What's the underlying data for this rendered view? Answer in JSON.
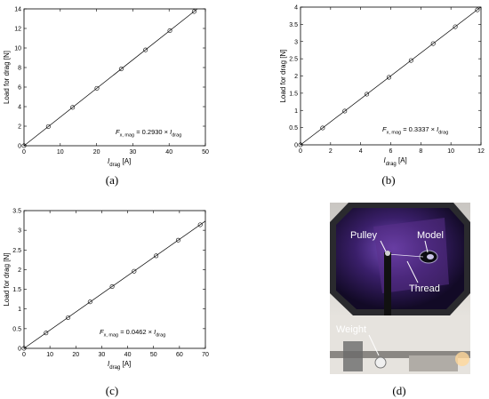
{
  "chart_data": [
    {
      "type": "scatter",
      "caption": "(a)",
      "ylabel": "Load for drag [N]",
      "xlabel_main": "I",
      "xlabel_sub": "drag",
      "xlabel_unit": " [A]",
      "xlim": [
        0,
        50
      ],
      "ylim": [
        0,
        14
      ],
      "xticks": [
        0,
        10,
        20,
        30,
        40,
        50
      ],
      "yticks": [
        0,
        2,
        4,
        6,
        8,
        10,
        12,
        14
      ],
      "x": [
        0,
        6.7,
        13.4,
        20.1,
        26.8,
        33.5,
        40.2,
        46.9
      ],
      "y": [
        0,
        1.96,
        3.92,
        5.88,
        7.85,
        9.81,
        11.77,
        13.73
      ],
      "fit_slope": 0.293,
      "equation": {
        "lhs_main": "F",
        "lhs_sub": "x, mag",
        "coef": " = 0.2930 × ",
        "rhs_main": "I",
        "rhs_sub": "drag"
      }
    },
    {
      "type": "scatter",
      "caption": "(b)",
      "ylabel": "Load for drag [N]",
      "xlabel_main": "I",
      "xlabel_sub": "drag",
      "xlabel_unit": " [A]",
      "xlim": [
        0,
        12
      ],
      "ylim": [
        0,
        4
      ],
      "xticks": [
        0,
        2,
        4,
        6,
        8,
        10,
        12
      ],
      "yticks": [
        0,
        0.5,
        1,
        1.5,
        2,
        2.5,
        3,
        3.5,
        4
      ],
      "x": [
        0,
        1.47,
        2.94,
        4.41,
        5.88,
        7.35,
        8.82,
        10.29,
        11.76
      ],
      "y": [
        0,
        0.49,
        0.98,
        1.47,
        1.96,
        2.45,
        2.94,
        3.43,
        3.92
      ],
      "fit_slope": 0.3337,
      "equation": {
        "lhs_main": "F",
        "lhs_sub": "x, mag",
        "coef": " = 0.3337 × ",
        "rhs_main": "I",
        "rhs_sub": "drag"
      }
    },
    {
      "type": "scatter",
      "caption": "(c)",
      "ylabel": "Load for drag [N]",
      "xlabel_main": "I",
      "xlabel_sub": "drag",
      "xlabel_unit": " [A]",
      "xlim": [
        0,
        70
      ],
      "ylim": [
        0,
        3.5
      ],
      "xticks": [
        0,
        10,
        20,
        30,
        40,
        50,
        60,
        70
      ],
      "yticks": [
        0,
        0.5,
        1,
        1.5,
        2,
        2.5,
        3,
        3.5
      ],
      "x": [
        0,
        8.5,
        17,
        25.5,
        34,
        42.5,
        51,
        59.5,
        68
      ],
      "y": [
        0,
        0.39,
        0.78,
        1.18,
        1.57,
        1.96,
        2.35,
        2.75,
        3.14
      ],
      "fit_slope": 0.0462,
      "equation": {
        "lhs_main": "F",
        "lhs_sub": "x, mag",
        "coef": " = 0.0462 × ",
        "rhs_main": "I",
        "rhs_sub": "drag"
      }
    }
  ],
  "photo": {
    "caption": "(d)",
    "labels": {
      "pulley": "Pulley",
      "model": "Model",
      "thread": "Thread",
      "weight": "Weight"
    }
  }
}
